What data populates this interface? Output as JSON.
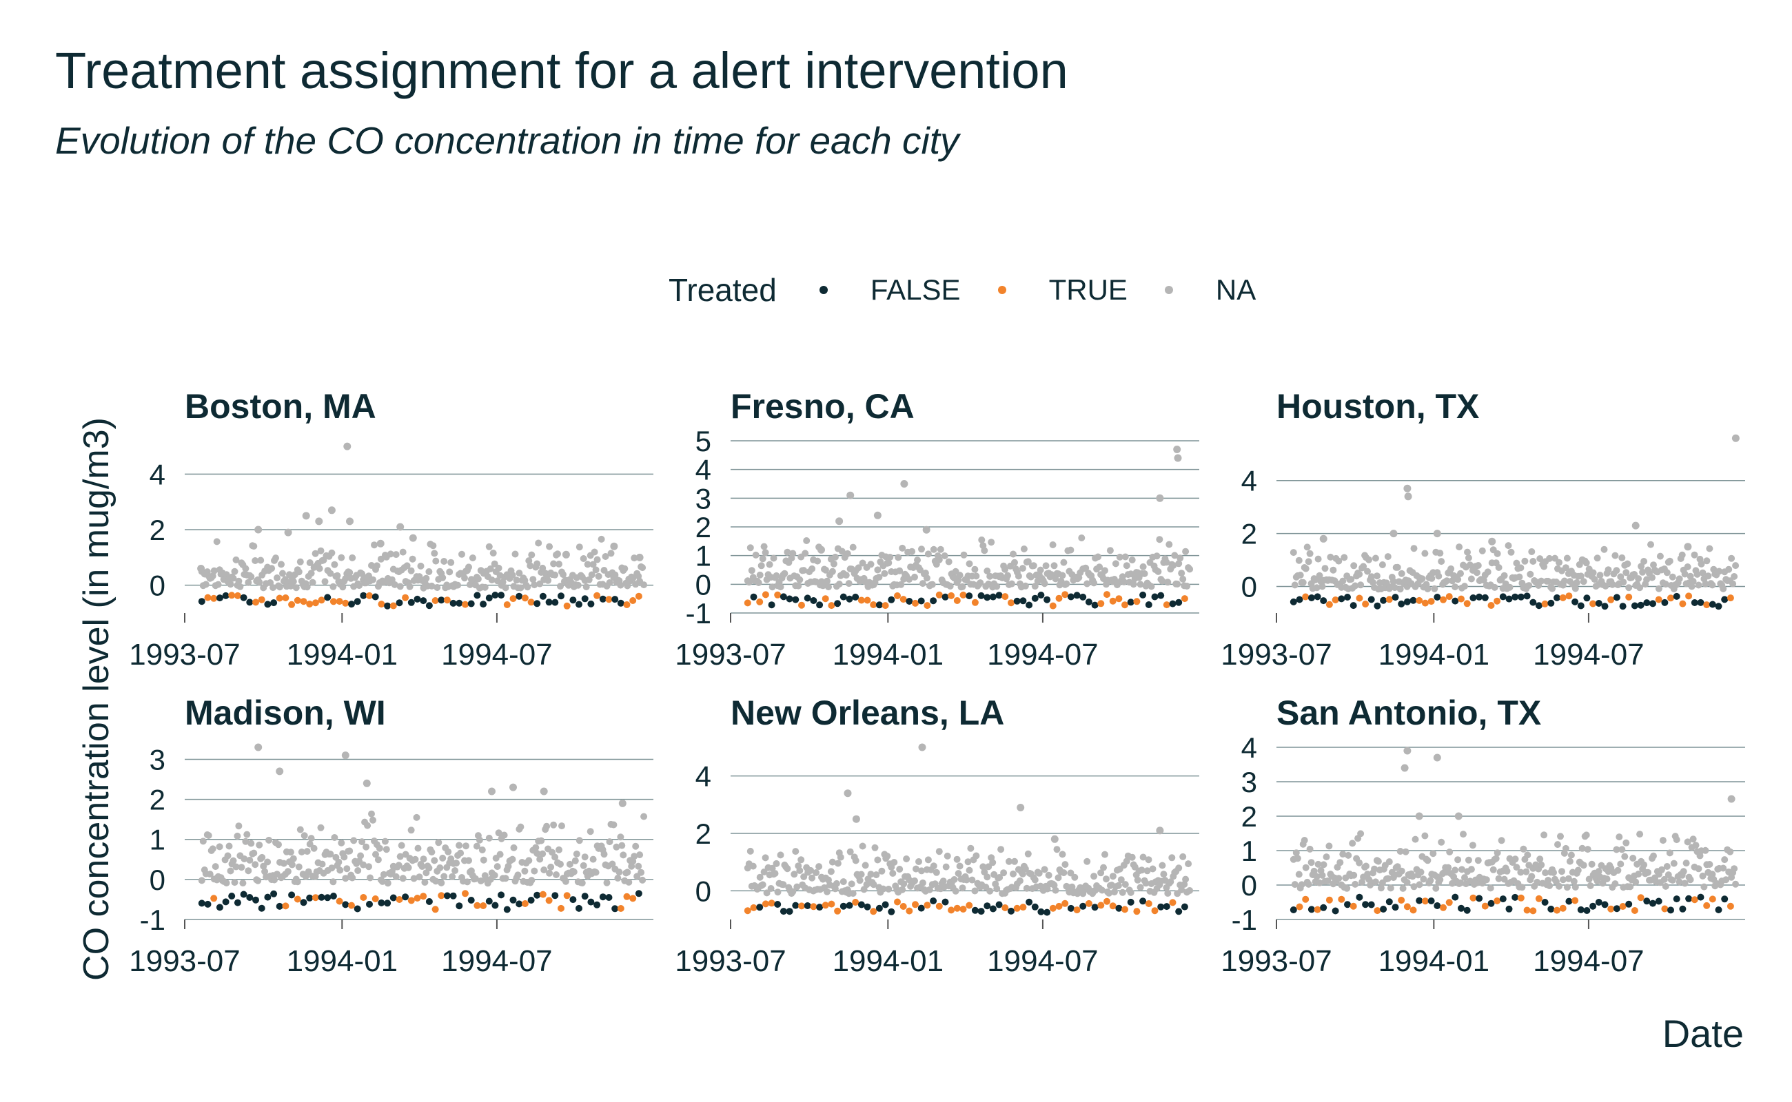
{
  "title": "Treatment assignment for a alert intervention",
  "subtitle": "Evolution of the CO concentration in time for each city",
  "legend": {
    "title": "Treated",
    "items": [
      {
        "label": "FALSE",
        "color": "#0e2a33"
      },
      {
        "label": "TRUE",
        "color": "#f2832b"
      },
      {
        "label": "NA",
        "color": "#b5b5b5"
      }
    ]
  },
  "ylabel": "CO concentration level (in mug/m3)",
  "xlabel": "Date",
  "colors": {
    "grid": "#7f9497",
    "text": "#0e2a33",
    "axis": "#555555"
  },
  "chart_data": {
    "type": "scatter",
    "facet": "city",
    "x_type": "date",
    "xlim": [
      "1993-07-01",
      "1994-12-31"
    ],
    "x_ticks": [
      "1993-07",
      "1994-01",
      "1994-07"
    ],
    "series": [
      "FALSE",
      "TRUE",
      "NA"
    ],
    "legend_position": "top",
    "panels": [
      {
        "name": "Boston, MA",
        "ylim": [
          -1,
          5.2
        ],
        "y_ticks": [
          0,
          2,
          4
        ],
        "grid": true,
        "points": [
          {
            "x": "1993-07-20",
            "y": 0.6,
            "treated": "NA"
          },
          {
            "x": "1993-09-25",
            "y": 2.0,
            "treated": "NA"
          },
          {
            "x": "1993-10-30",
            "y": 1.9,
            "treated": "NA"
          },
          {
            "x": "1993-11-20",
            "y": 2.5,
            "treated": "NA"
          },
          {
            "x": "1993-12-05",
            "y": 2.3,
            "treated": "NA"
          },
          {
            "x": "1993-12-20",
            "y": 2.7,
            "treated": "NA"
          },
          {
            "x": "1994-01-07",
            "y": 5.0,
            "treated": "NA"
          },
          {
            "x": "1994-01-10",
            "y": 2.3,
            "treated": "NA"
          },
          {
            "x": "1994-02-15",
            "y": 1.5,
            "treated": "NA"
          },
          {
            "x": "1994-03-10",
            "y": 2.1,
            "treated": "NA"
          },
          {
            "x": "1994-03-25",
            "y": 1.7,
            "treated": "NA"
          },
          {
            "x": "1994-09-20",
            "y": 1.1,
            "treated": "NA"
          },
          {
            "x": "1994-11-15",
            "y": 1.4,
            "treated": "NA"
          },
          {
            "x": "1994-12-15",
            "y": 1.0,
            "treated": "NA"
          }
        ]
      },
      {
        "name": "Fresno, CA",
        "ylim": [
          -1,
          5
        ],
        "y_ticks": [
          -1,
          0,
          1,
          2,
          3,
          4,
          5
        ],
        "grid": true,
        "points": [
          {
            "x": "1993-10-15",
            "y": 1.2,
            "treated": "NA"
          },
          {
            "x": "1993-11-05",
            "y": 2.2,
            "treated": "NA"
          },
          {
            "x": "1993-11-18",
            "y": 3.1,
            "treated": "NA"
          },
          {
            "x": "1993-12-20",
            "y": 2.4,
            "treated": "NA"
          },
          {
            "x": "1994-01-20",
            "y": 3.5,
            "treated": "NA"
          },
          {
            "x": "1994-02-15",
            "y": 1.9,
            "treated": "NA"
          },
          {
            "x": "1994-11-15",
            "y": 3.0,
            "treated": "NA"
          },
          {
            "x": "1994-12-05",
            "y": 4.7,
            "treated": "NA"
          },
          {
            "x": "1994-12-06",
            "y": 4.4,
            "treated": "NA"
          }
        ]
      },
      {
        "name": "Houston, TX",
        "ylim": [
          -1,
          5.5
        ],
        "y_ticks": [
          0,
          2,
          4
        ],
        "grid": true,
        "points": [
          {
            "x": "1993-08-25",
            "y": 1.8,
            "treated": "NA"
          },
          {
            "x": "1993-11-15",
            "y": 2.0,
            "treated": "NA"
          },
          {
            "x": "1993-12-01",
            "y": 3.7,
            "treated": "NA"
          },
          {
            "x": "1993-12-02",
            "y": 3.4,
            "treated": "NA"
          },
          {
            "x": "1994-01-05",
            "y": 2.0,
            "treated": "NA"
          },
          {
            "x": "1994-03-10",
            "y": 1.7,
            "treated": "NA"
          },
          {
            "x": "1994-08-25",
            "y": 2.3,
            "treated": "NA"
          },
          {
            "x": "1994-10-25",
            "y": 1.5,
            "treated": "NA"
          },
          {
            "x": "1994-12-20",
            "y": 5.6,
            "treated": "NA"
          }
        ]
      },
      {
        "name": "Madison, WI",
        "ylim": [
          -1,
          3.3
        ],
        "y_ticks": [
          -1,
          0,
          1,
          2,
          3
        ],
        "grid": true,
        "points": [
          {
            "x": "1993-09-25",
            "y": 3.3,
            "treated": "NA"
          },
          {
            "x": "1993-10-20",
            "y": 2.7,
            "treated": "NA"
          },
          {
            "x": "1994-01-05",
            "y": 3.1,
            "treated": "NA"
          },
          {
            "x": "1994-01-30",
            "y": 2.4,
            "treated": "NA"
          },
          {
            "x": "1994-06-25",
            "y": 2.2,
            "treated": "NA"
          },
          {
            "x": "1994-07-20",
            "y": 2.3,
            "treated": "NA"
          },
          {
            "x": "1994-08-25",
            "y": 2.2,
            "treated": "NA"
          },
          {
            "x": "1994-11-25",
            "y": 1.9,
            "treated": "NA"
          }
        ]
      },
      {
        "name": "New Orleans, LA",
        "ylim": [
          -1,
          5
        ],
        "y_ticks": [
          0,
          2,
          4
        ],
        "grid": true,
        "points": [
          {
            "x": "1993-11-15",
            "y": 3.4,
            "treated": "NA"
          },
          {
            "x": "1993-11-25",
            "y": 2.5,
            "treated": "NA"
          },
          {
            "x": "1994-02-10",
            "y": 5.0,
            "treated": "NA"
          },
          {
            "x": "1994-06-05",
            "y": 2.9,
            "treated": "NA"
          },
          {
            "x": "1994-07-15",
            "y": 1.8,
            "treated": "NA"
          },
          {
            "x": "1994-11-15",
            "y": 2.1,
            "treated": "NA"
          }
        ]
      },
      {
        "name": "San Antonio, TX",
        "ylim": [
          -1,
          4
        ],
        "y_ticks": [
          -1,
          0,
          1,
          2,
          3,
          4
        ],
        "grid": true,
        "points": [
          {
            "x": "1993-12-01",
            "y": 3.9,
            "treated": "NA"
          },
          {
            "x": "1993-11-28",
            "y": 3.4,
            "treated": "NA"
          },
          {
            "x": "1994-01-05",
            "y": 3.7,
            "treated": "NA"
          },
          {
            "x": "1993-12-15",
            "y": 2.0,
            "treated": "NA"
          },
          {
            "x": "1994-01-30",
            "y": 2.0,
            "treated": "NA"
          },
          {
            "x": "1994-12-15",
            "y": 2.5,
            "treated": "NA"
          }
        ]
      }
    ]
  }
}
